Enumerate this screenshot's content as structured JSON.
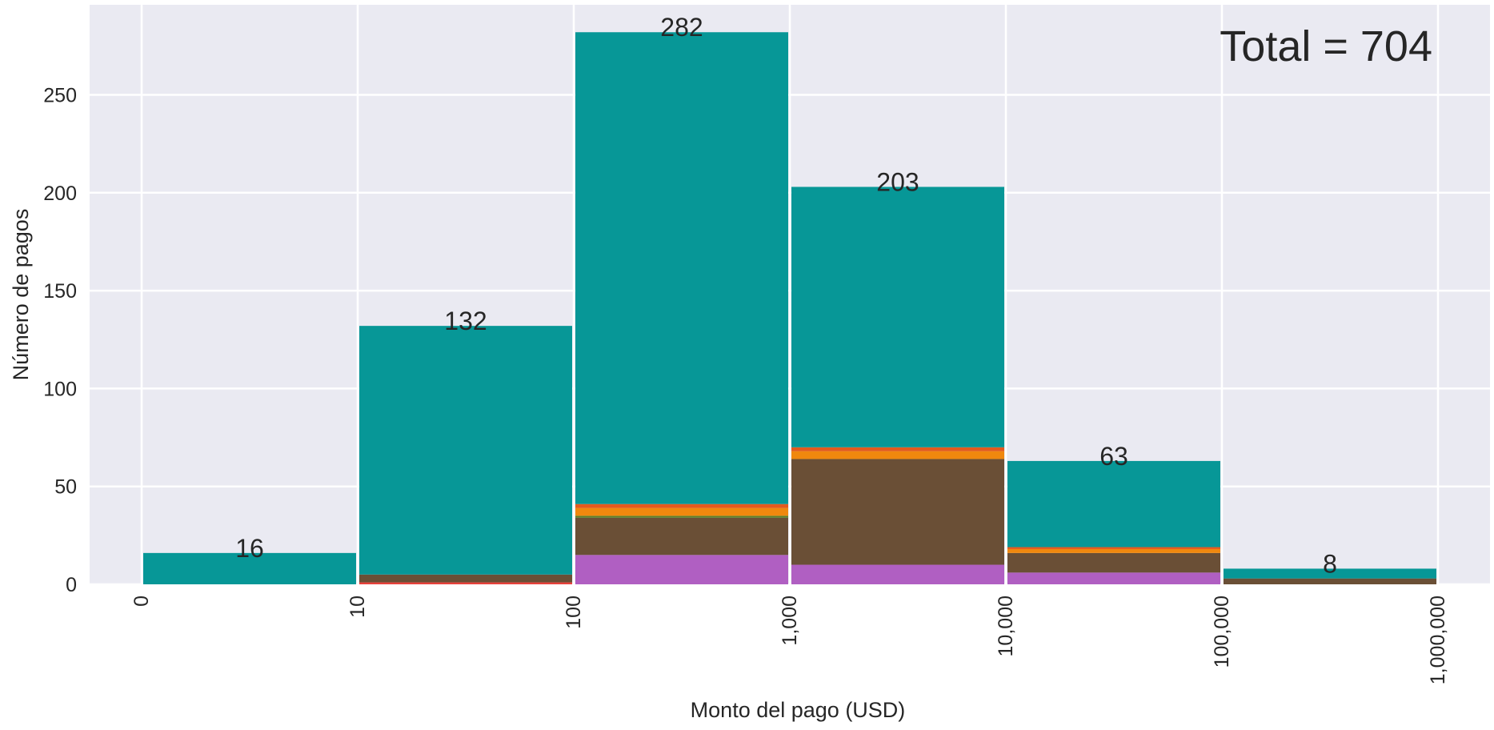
{
  "chart_data": {
    "type": "bar",
    "stacked": true,
    "title": "",
    "xlabel": "Monto del pago (USD)",
    "ylabel": "Número de pagos",
    "annotation": "Total = 704",
    "ylim": [
      0,
      296
    ],
    "yticks": [
      0,
      50,
      100,
      150,
      200,
      250
    ],
    "xticks": [
      "0",
      "10",
      "100",
      "1,000",
      "10,000",
      "100,000",
      "1,000,000"
    ],
    "grid": true,
    "background": "#EAEAF2",
    "bins": [
      {
        "from": "0",
        "to": "10",
        "total": 16,
        "total_label": "16"
      },
      {
        "from": "10",
        "to": "100",
        "total": 132,
        "total_label": "132"
      },
      {
        "from": "100",
        "to": "1,000",
        "total": 282,
        "total_label": "282"
      },
      {
        "from": "1,000",
        "to": "10,000",
        "total": 203,
        "total_label": "203"
      },
      {
        "from": "10,000",
        "to": "100,000",
        "total": 63,
        "total_label": "63"
      },
      {
        "from": "100,000",
        "to": "1,000,000",
        "total": 8,
        "total_label": "8"
      }
    ],
    "series": [
      {
        "color": "#E8413B",
        "values": [
          0,
          1,
          0,
          0,
          0,
          0
        ]
      },
      {
        "color": "#B05FC2",
        "values": [
          0,
          0,
          15,
          10,
          6,
          0
        ]
      },
      {
        "color": "#6A4F36",
        "values": [
          0,
          4,
          19,
          54,
          10,
          3
        ]
      },
      {
        "color": "#5E7F2A",
        "values": [
          0,
          0,
          1,
          0,
          0,
          0
        ]
      },
      {
        "color": "#F0880E",
        "values": [
          0,
          0,
          4,
          4,
          2,
          0
        ]
      },
      {
        "color": "#E35A1E",
        "values": [
          0,
          0,
          2,
          2,
          1,
          0
        ]
      },
      {
        "color": "#079797",
        "values": [
          16,
          127,
          241,
          133,
          44,
          5
        ]
      }
    ]
  }
}
